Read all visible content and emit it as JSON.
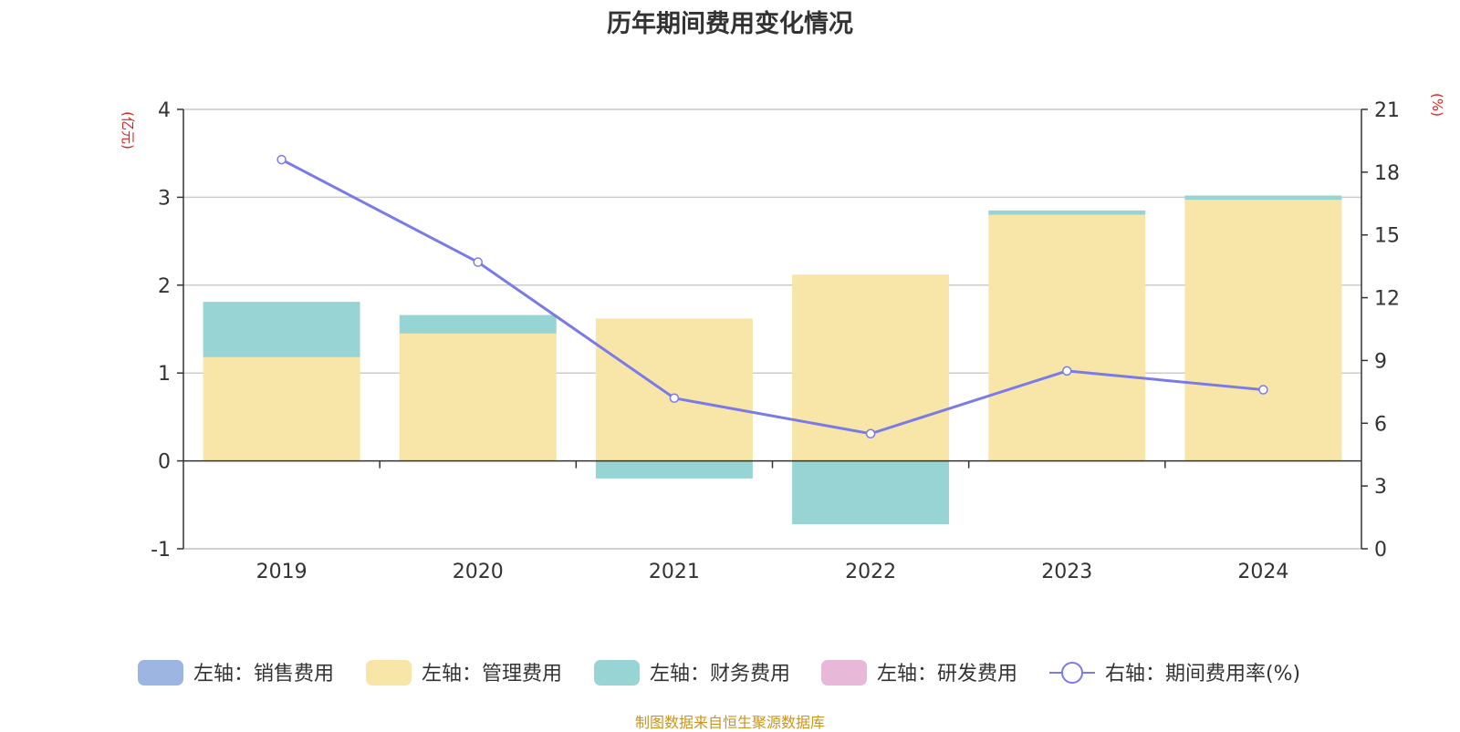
{
  "chart_data": {
    "type": "bar",
    "title": "历年期间费用变化情况",
    "categories": [
      "2019",
      "2020",
      "2021",
      "2022",
      "2023",
      "2024"
    ],
    "y_left": {
      "unit": "(亿元)",
      "ylim": [
        -1,
        4
      ],
      "ticks": [
        -1,
        0,
        1,
        2,
        3,
        4
      ]
    },
    "y_right": {
      "unit": "(%)",
      "ylim": [
        0,
        21
      ],
      "ticks": [
        0,
        3,
        6,
        9,
        12,
        15,
        18,
        21
      ]
    },
    "series": [
      {
        "name": "左轴：销售费用",
        "kind": "bar",
        "axis": "left",
        "color": "#9db5e1",
        "values": [
          0,
          0,
          0,
          0,
          0,
          0
        ]
      },
      {
        "name": "左轴：管理费用",
        "kind": "bar",
        "axis": "left",
        "color": "#f7e6a8",
        "values": [
          1.18,
          1.45,
          1.62,
          2.12,
          2.8,
          2.97
        ]
      },
      {
        "name": "左轴：财务费用",
        "kind": "bar",
        "axis": "left",
        "color": "#98d4d4",
        "values": [
          0.63,
          0.21,
          -0.2,
          -0.72,
          0.05,
          0.05
        ]
      },
      {
        "name": "左轴：研发费用",
        "kind": "bar",
        "axis": "left",
        "color": "#e8b8d8",
        "values": [
          0,
          0,
          0,
          0,
          0,
          0
        ]
      },
      {
        "name": "右轴：期间费用率(%)",
        "kind": "line",
        "axis": "right",
        "color": "#7a7ae8",
        "values": [
          18.6,
          13.7,
          7.2,
          5.5,
          8.5,
          7.6
        ]
      }
    ],
    "grid": true,
    "legend_position": "bottom"
  },
  "source_note": "制图数据来自恒生聚源数据库"
}
